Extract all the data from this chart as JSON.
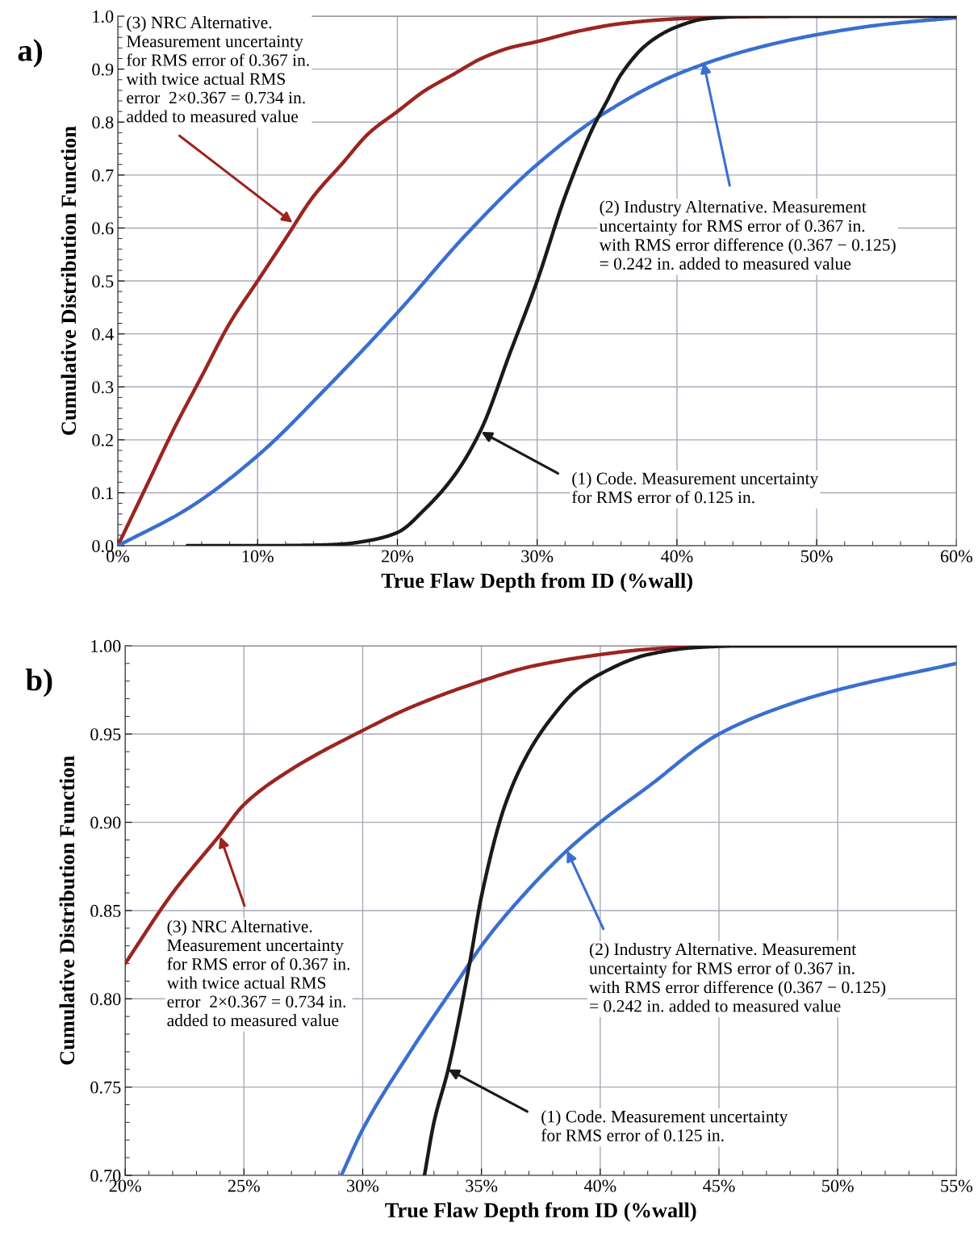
{
  "chart_data": [
    {
      "type": "line",
      "title": "a)",
      "xlabel": "True Flaw Depth from ID (%wall)",
      "ylabel": "Cumulative Distribution Function",
      "xlim": [
        0,
        60
      ],
      "xticks": [
        {
          "value": 0,
          "label": "0%"
        },
        {
          "value": 10,
          "label": "10%"
        },
        {
          "value": 20,
          "label": "20%"
        },
        {
          "value": 30,
          "label": "30%"
        },
        {
          "value": 40,
          "label": "40%"
        },
        {
          "value": 50,
          "label": "50%"
        },
        {
          "value": 60,
          "label": "60%"
        }
      ],
      "ylim": [
        0,
        1.0
      ],
      "yticks": [
        {
          "value": 0,
          "label": "0.0"
        },
        {
          "value": 0.1,
          "label": "0.1"
        },
        {
          "value": 0.2,
          "label": "0.2"
        },
        {
          "value": 0.3,
          "label": "0.3"
        },
        {
          "value": 0.4,
          "label": "0.4"
        },
        {
          "value": 0.5,
          "label": "0.5"
        },
        {
          "value": 0.6,
          "label": "0.6"
        },
        {
          "value": 0.7,
          "label": "0.7"
        },
        {
          "value": 0.8,
          "label": "0.8"
        },
        {
          "value": 0.9,
          "label": "0.9"
        },
        {
          "value": 1.0,
          "label": "1.0"
        }
      ],
      "grid": true,
      "marker": "none",
      "line_style": "solid",
      "series": [
        {
          "color": "#9b2520",
          "x": [
            0,
            2,
            4,
            6,
            8,
            10,
            12,
            14,
            16,
            18,
            20,
            22,
            24,
            26,
            28,
            30,
            33,
            36,
            40,
            45,
            50,
            60
          ],
          "values": [
            0,
            0.11,
            0.22,
            0.32,
            0.42,
            0.5,
            0.58,
            0.66,
            0.72,
            0.78,
            0.82,
            0.86,
            0.89,
            0.92,
            0.94,
            0.952,
            0.972,
            0.986,
            0.995,
            0.999,
            1.0,
            1.0
          ]
        },
        {
          "color": "#3a6fd0",
          "x": [
            0,
            5,
            10,
            15,
            20,
            25,
            30,
            35,
            40,
            45,
            50,
            55,
            60
          ],
          "values": [
            0,
            0.07,
            0.17,
            0.3,
            0.44,
            0.59,
            0.72,
            0.82,
            0.89,
            0.935,
            0.965,
            0.985,
            0.997
          ]
        },
        {
          "color": "#1a1a1a",
          "x": [
            5,
            10,
            14,
            16,
            18,
            20,
            22,
            24,
            26,
            28,
            30,
            32,
            34,
            35,
            36,
            38,
            40,
            42,
            45,
            50,
            60
          ],
          "values": [
            0,
            0,
            0.001,
            0.003,
            0.01,
            0.025,
            0.07,
            0.13,
            0.22,
            0.36,
            0.5,
            0.66,
            0.79,
            0.84,
            0.89,
            0.95,
            0.98,
            0.995,
            1.0,
            1.0,
            1.0
          ]
        }
      ],
      "annotations": [
        {
          "text": "(3) NRC Alternative.\nMeasurement uncertainty\nfor RMS error of 0.367 in.\nwith twice actual RMS\nerror  2×0.367 = 0.734 in.\nadded to measured value",
          "x": 12.5,
          "y": 0.61
        },
        {
          "text": "(2) Industry Alternative. Measurement\nuncertainty for RMS error of 0.367 in.\nwith RMS error difference (0.367 − 0.125)\n= 0.242 in. added to measured value",
          "x": 41.9,
          "y": 0.913
        },
        {
          "text": "(1) Code. Measurement uncertainty\nfor RMS error of 0.125 in.",
          "x": 26.0,
          "y": 0.215
        }
      ]
    },
    {
      "type": "line",
      "title": "b)",
      "xlabel": "True Flaw Depth from ID (%wall)",
      "ylabel": "Cumulative Distribution Function",
      "xlim": [
        20,
        55
      ],
      "xticks": [
        {
          "value": 20,
          "label": "20%"
        },
        {
          "value": 25,
          "label": "25%"
        },
        {
          "value": 30,
          "label": "30%"
        },
        {
          "value": 35,
          "label": "35%"
        },
        {
          "value": 40,
          "label": "40%"
        },
        {
          "value": 45,
          "label": "45%"
        },
        {
          "value": 50,
          "label": "50%"
        },
        {
          "value": 55,
          "label": "55%"
        }
      ],
      "ylim": [
        0.7,
        1.0
      ],
      "yticks": [
        {
          "value": 0.7,
          "label": "0.70"
        },
        {
          "value": 0.75,
          "label": "0.75"
        },
        {
          "value": 0.8,
          "label": "0.80"
        },
        {
          "value": 0.85,
          "label": "0.85"
        },
        {
          "value": 0.9,
          "label": "0.90"
        },
        {
          "value": 0.95,
          "label": "0.95"
        },
        {
          "value": 1.0,
          "label": "1.00"
        }
      ],
      "grid": true,
      "marker": "none",
      "line_style": "solid",
      "series": [
        {
          "color": "#9b2520",
          "x": [
            20,
            22,
            24,
            25,
            27,
            30,
            32,
            35,
            37,
            40,
            42,
            45,
            55
          ],
          "values": [
            0.82,
            0.86,
            0.893,
            0.91,
            0.93,
            0.952,
            0.965,
            0.98,
            0.988,
            0.995,
            0.998,
            1.0,
            1.0
          ]
        },
        {
          "color": "#3a6fd0",
          "x": [
            29.1,
            30,
            32,
            34,
            35,
            36,
            38.6,
            40,
            42,
            45,
            48,
            50,
            55
          ],
          "values": [
            0.7,
            0.726,
            0.77,
            0.81,
            0.83,
            0.847,
            0.884,
            0.9,
            0.92,
            0.95,
            0.967,
            0.975,
            0.99
          ]
        },
        {
          "color": "#1a1a1a",
          "x": [
            32.6,
            33,
            33.6,
            34.5,
            35,
            36,
            37,
            38,
            39,
            40,
            42,
            44,
            46,
            55
          ],
          "values": [
            0.7,
            0.73,
            0.76,
            0.82,
            0.858,
            0.91,
            0.94,
            0.96,
            0.975,
            0.984,
            0.995,
            0.999,
            1.0,
            1.0
          ]
        }
      ],
      "annotations": [
        {
          "text": "(3) NRC Alternative.\nMeasurement uncertainty\nfor RMS error of 0.367 in.\nwith twice actual RMS\nerror  2×0.367 = 0.734 in.\nadded to measured value",
          "x": 24.0,
          "y": 0.892
        },
        {
          "text": "(2) Industry Alternative. Measurement\nuncertainty for RMS error of 0.367 in.\nwith RMS error difference (0.367 − 0.125)\n= 0.242 in. added to measured value",
          "x": 38.6,
          "y": 0.884
        },
        {
          "text": "(1) Code. Measurement uncertainty\nfor RMS error of 0.125 in.",
          "x": 33.6,
          "y": 0.76
        }
      ]
    }
  ]
}
